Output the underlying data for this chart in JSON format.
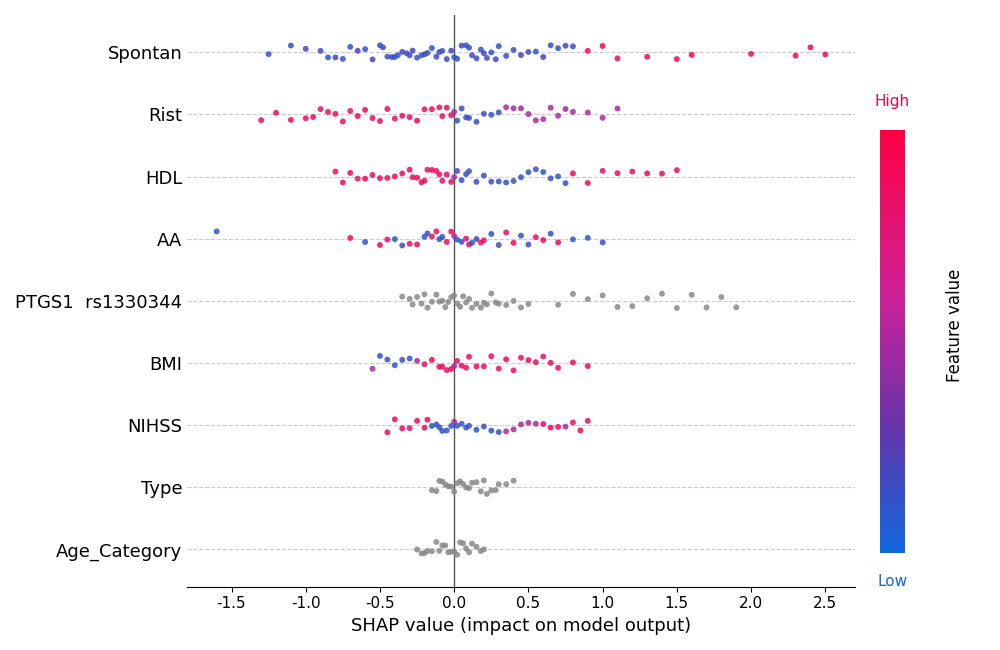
{
  "features": [
    "Spontan",
    "Rist",
    "HDL",
    "AA",
    "PTGS1  rs1330344",
    "BMI",
    "NIHSS",
    "Type",
    "Age_Category"
  ],
  "xlabel": "SHAP value (impact on model output)",
  "colorbar_label": "Feature value",
  "colorbar_high": "High",
  "colorbar_low": "Low",
  "xlim": [
    -1.8,
    2.7
  ],
  "xticks": [
    -1.5,
    -1.0,
    -0.5,
    0.0,
    0.5,
    1.0,
    1.5,
    2.0,
    2.5
  ],
  "background_color": "#ffffff",
  "grid_color": "#cccccc",
  "dot_size": 18,
  "alpha": 0.85,
  "seeds": {
    "Spontan": 42,
    "Rist": 43,
    "HDL": 44,
    "AA": 45,
    "PTGS1  rs1330344": 46,
    "BMI": 47,
    "NIHSS": 48,
    "Type": 49,
    "Age_Category": 50
  },
  "feature_data": {
    "Spontan": {
      "shap_values": [
        -1.25,
        -1.1,
        -1.0,
        -0.9,
        -0.85,
        -0.8,
        -0.75,
        -0.7,
        -0.65,
        -0.6,
        -0.55,
        -0.5,
        -0.48,
        -0.45,
        -0.42,
        -0.4,
        -0.38,
        -0.35,
        -0.32,
        -0.3,
        -0.28,
        -0.25,
        -0.22,
        -0.2,
        -0.18,
        -0.15,
        -0.12,
        -0.1,
        -0.08,
        -0.05,
        -0.02,
        0.0,
        0.02,
        0.05,
        0.08,
        0.1,
        0.12,
        0.15,
        0.18,
        0.2,
        0.22,
        0.25,
        0.28,
        0.3,
        0.35,
        0.4,
        0.45,
        0.5,
        0.55,
        0.6,
        0.65,
        0.7,
        0.75,
        0.8,
        0.9,
        1.0,
        1.1,
        1.3,
        1.5,
        1.6,
        2.0,
        2.3,
        2.4,
        2.5
      ],
      "feature_values": [
        0.1,
        0.15,
        0.2,
        0.15,
        0.1,
        0.2,
        0.15,
        0.1,
        0.2,
        0.15,
        0.2,
        0.1,
        0.15,
        0.1,
        0.2,
        0.15,
        0.1,
        0.2,
        0.15,
        0.1,
        0.2,
        0.15,
        0.1,
        0.2,
        0.15,
        0.1,
        0.15,
        0.2,
        0.1,
        0.15,
        0.2,
        0.1,
        0.15,
        0.2,
        0.1,
        0.15,
        0.2,
        0.15,
        0.1,
        0.2,
        0.15,
        0.1,
        0.2,
        0.15,
        0.1,
        0.15,
        0.2,
        0.15,
        0.1,
        0.2,
        0.15,
        0.1,
        0.2,
        0.15,
        0.9,
        0.95,
        0.9,
        0.95,
        0.9,
        0.95,
        0.9,
        0.9,
        0.95,
        0.9
      ],
      "is_categorical": false
    },
    "Rist": {
      "shap_values": [
        -1.3,
        -1.2,
        -1.1,
        -1.0,
        -0.95,
        -0.9,
        -0.85,
        -0.8,
        -0.75,
        -0.7,
        -0.65,
        -0.6,
        -0.55,
        -0.5,
        -0.45,
        -0.4,
        -0.35,
        -0.3,
        -0.25,
        -0.2,
        -0.15,
        -0.1,
        -0.08,
        -0.05,
        -0.02,
        0.0,
        0.02,
        0.05,
        0.08,
        0.1,
        0.15,
        0.2,
        0.25,
        0.3,
        0.35,
        0.4,
        0.45,
        0.5,
        0.55,
        0.6,
        0.65,
        0.7,
        0.75,
        0.8,
        0.9,
        1.0,
        1.1
      ],
      "feature_values": [
        0.85,
        0.9,
        0.9,
        0.85,
        0.9,
        0.85,
        0.9,
        0.85,
        0.9,
        0.85,
        0.9,
        0.85,
        0.9,
        0.85,
        0.9,
        0.85,
        0.9,
        0.85,
        0.9,
        0.85,
        0.9,
        0.85,
        0.9,
        0.85,
        0.9,
        0.5,
        0.1,
        0.15,
        0.1,
        0.15,
        0.1,
        0.15,
        0.1,
        0.15,
        0.5,
        0.5,
        0.5,
        0.5,
        0.5,
        0.5,
        0.5,
        0.5,
        0.5,
        0.5,
        0.5,
        0.5,
        0.5
      ],
      "is_categorical": false
    },
    "HDL": {
      "shap_values": [
        -0.8,
        -0.75,
        -0.7,
        -0.65,
        -0.6,
        -0.55,
        -0.5,
        -0.45,
        -0.4,
        -0.35,
        -0.3,
        -0.28,
        -0.25,
        -0.22,
        -0.2,
        -0.18,
        -0.15,
        -0.12,
        -0.1,
        -0.08,
        -0.05,
        -0.02,
        0.0,
        0.02,
        0.05,
        0.08,
        0.1,
        0.15,
        0.2,
        0.25,
        0.3,
        0.35,
        0.4,
        0.45,
        0.5,
        0.55,
        0.6,
        0.65,
        0.7,
        0.75,
        0.8,
        0.9,
        1.0,
        1.1,
        1.2,
        1.3,
        1.4,
        1.5
      ],
      "feature_values": [
        0.9,
        0.85,
        0.9,
        0.85,
        0.9,
        0.85,
        0.9,
        0.85,
        0.9,
        0.85,
        0.9,
        0.85,
        0.9,
        0.85,
        0.9,
        0.85,
        0.9,
        0.85,
        0.9,
        0.85,
        0.9,
        0.85,
        0.5,
        0.15,
        0.1,
        0.15,
        0.1,
        0.15,
        0.1,
        0.15,
        0.1,
        0.1,
        0.15,
        0.1,
        0.1,
        0.15,
        0.1,
        0.15,
        0.1,
        0.1,
        0.9,
        0.9,
        0.85,
        0.9,
        0.85,
        0.9,
        0.85,
        0.9
      ],
      "is_categorical": false
    },
    "AA": {
      "shap_values": [
        -1.6,
        -0.7,
        -0.6,
        -0.5,
        -0.45,
        -0.4,
        -0.35,
        -0.3,
        -0.25,
        -0.2,
        -0.18,
        -0.15,
        -0.12,
        -0.1,
        -0.08,
        -0.05,
        -0.02,
        0.0,
        0.02,
        0.05,
        0.08,
        0.1,
        0.12,
        0.15,
        0.18,
        0.2,
        0.25,
        0.3,
        0.35,
        0.4,
        0.45,
        0.5,
        0.55,
        0.6,
        0.65,
        0.7,
        0.8,
        0.9,
        1.0
      ],
      "feature_values": [
        0.1,
        0.9,
        0.1,
        0.85,
        0.9,
        0.1,
        0.15,
        0.85,
        0.9,
        0.1,
        0.15,
        0.85,
        0.9,
        0.1,
        0.15,
        0.85,
        0.9,
        0.5,
        0.1,
        0.15,
        0.85,
        0.9,
        0.1,
        0.15,
        0.85,
        0.9,
        0.1,
        0.15,
        0.85,
        0.9,
        0.1,
        0.15,
        0.85,
        0.9,
        0.1,
        0.9,
        0.1,
        0.1,
        0.1
      ],
      "is_categorical": false
    },
    "PTGS1  rs1330344": {
      "shap_values": [
        -0.35,
        -0.3,
        -0.28,
        -0.25,
        -0.22,
        -0.2,
        -0.18,
        -0.15,
        -0.12,
        -0.1,
        -0.08,
        -0.06,
        -0.04,
        -0.02,
        0.0,
        0.02,
        0.04,
        0.06,
        0.08,
        0.1,
        0.12,
        0.15,
        0.18,
        0.2,
        0.22,
        0.25,
        0.28,
        0.3,
        0.35,
        0.4,
        0.45,
        0.5,
        0.7,
        0.8,
        0.9,
        1.0,
        1.1,
        1.2,
        1.3,
        1.4,
        1.5,
        1.6,
        1.7,
        1.8,
        1.9
      ],
      "feature_values": [
        0.5,
        0.5,
        0.5,
        0.5,
        0.5,
        0.5,
        0.5,
        0.5,
        0.5,
        0.5,
        0.5,
        0.5,
        0.5,
        0.5,
        0.5,
        0.5,
        0.5,
        0.5,
        0.5,
        0.5,
        0.5,
        0.5,
        0.5,
        0.5,
        0.5,
        0.5,
        0.5,
        0.5,
        0.5,
        0.5,
        0.5,
        0.5,
        0.5,
        0.5,
        0.5,
        0.5,
        0.5,
        0.5,
        0.5,
        0.5,
        0.5,
        0.5,
        0.5,
        0.5,
        0.5
      ],
      "is_categorical": true
    },
    "BMI": {
      "shap_values": [
        -0.55,
        -0.5,
        -0.45,
        -0.4,
        -0.35,
        -0.3,
        -0.25,
        -0.2,
        -0.15,
        -0.1,
        -0.08,
        -0.05,
        -0.02,
        0.0,
        0.02,
        0.05,
        0.08,
        0.1,
        0.15,
        0.2,
        0.25,
        0.3,
        0.35,
        0.4,
        0.45,
        0.5,
        0.55,
        0.6,
        0.65,
        0.7,
        0.8,
        0.9
      ],
      "feature_values": [
        0.5,
        0.1,
        0.15,
        0.1,
        0.15,
        0.1,
        0.5,
        0.85,
        0.9,
        0.85,
        0.9,
        0.85,
        0.9,
        0.5,
        0.85,
        0.9,
        0.85,
        0.85,
        0.9,
        0.85,
        0.9,
        0.85,
        0.9,
        0.85,
        0.85,
        0.9,
        0.85,
        0.85,
        0.9,
        0.85,
        0.85,
        0.9
      ],
      "is_categorical": false
    },
    "NIHSS": {
      "shap_values": [
        -0.45,
        -0.4,
        -0.35,
        -0.3,
        -0.25,
        -0.2,
        -0.18,
        -0.15,
        -0.12,
        -0.1,
        -0.08,
        -0.05,
        -0.02,
        0.0,
        0.02,
        0.05,
        0.08,
        0.1,
        0.15,
        0.2,
        0.25,
        0.3,
        0.35,
        0.4,
        0.45,
        0.5,
        0.55,
        0.6,
        0.65,
        0.7,
        0.75,
        0.8,
        0.85,
        0.9
      ],
      "feature_values": [
        0.9,
        0.85,
        0.9,
        0.85,
        0.9,
        0.85,
        0.9,
        0.1,
        0.15,
        0.1,
        0.15,
        0.1,
        0.15,
        0.5,
        0.1,
        0.15,
        0.1,
        0.15,
        0.1,
        0.15,
        0.1,
        0.15,
        0.5,
        0.5,
        0.5,
        0.5,
        0.5,
        0.85,
        0.9,
        0.85,
        0.5,
        0.85,
        0.9,
        0.85
      ],
      "is_categorical": false
    },
    "Type": {
      "shap_values": [
        -0.15,
        -0.12,
        -0.1,
        -0.08,
        -0.06,
        -0.04,
        -0.02,
        0.0,
        0.02,
        0.04,
        0.06,
        0.08,
        0.1,
        0.12,
        0.15,
        0.18,
        0.2,
        0.22,
        0.25,
        0.28,
        0.3,
        0.35,
        0.4
      ],
      "feature_values": [
        0.5,
        0.5,
        0.5,
        0.5,
        0.5,
        0.5,
        0.5,
        0.5,
        0.5,
        0.5,
        0.5,
        0.5,
        0.5,
        0.5,
        0.5,
        0.5,
        0.5,
        0.5,
        0.5,
        0.5,
        0.5,
        0.5,
        0.5
      ],
      "is_categorical": true
    },
    "Age_Category": {
      "shap_values": [
        -0.25,
        -0.22,
        -0.2,
        -0.18,
        -0.15,
        -0.12,
        -0.1,
        -0.08,
        -0.06,
        -0.04,
        -0.02,
        0.0,
        0.02,
        0.04,
        0.06,
        0.08,
        0.1,
        0.12,
        0.15,
        0.18,
        0.2
      ],
      "feature_values": [
        0.5,
        0.5,
        0.5,
        0.5,
        0.5,
        0.5,
        0.5,
        0.5,
        0.5,
        0.5,
        0.5,
        0.5,
        0.5,
        0.5,
        0.5,
        0.5,
        0.5,
        0.5,
        0.5,
        0.5,
        0.5
      ],
      "is_categorical": true
    }
  }
}
